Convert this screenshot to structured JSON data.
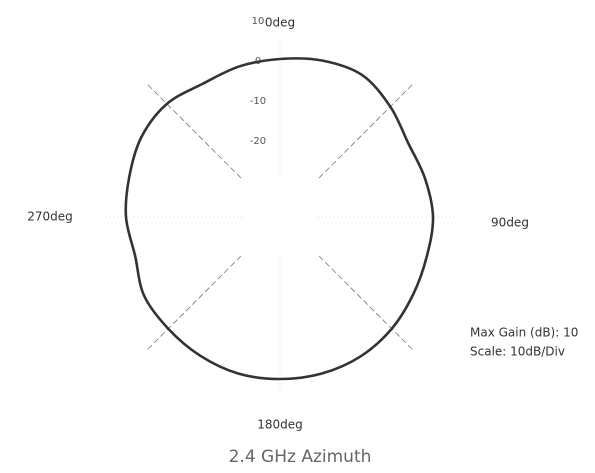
{
  "chart_data": {
    "type": "polar",
    "title": "2.4 GHz Azimuth",
    "angle_ticks": [
      0,
      90,
      180,
      270
    ],
    "angle_labels": [
      "0deg",
      "90deg",
      "180deg",
      "270deg"
    ],
    "rlim": [
      -40,
      10
    ],
    "rticks": [
      10,
      0,
      -10,
      -20
    ],
    "angles": [
      0,
      15,
      30,
      45,
      60,
      75,
      90,
      105,
      120,
      135,
      150,
      165,
      180,
      195,
      210,
      225,
      240,
      255,
      270,
      285,
      300,
      315,
      330,
      345
    ],
    "values": [
      -0.5,
      0.5,
      1,
      -1,
      -3,
      -2.5,
      -1.75,
      -2,
      -1.5,
      -0.5,
      0.25,
      0.5,
      0.5,
      0.5,
      0,
      -0.5,
      -0.75,
      -2.5,
      -1.5,
      -1,
      0,
      0,
      -1.5,
      -1
    ],
    "color": "#333333",
    "annotations": [
      "Max Gain (dB): 10",
      "Scale: 10dB/Div"
    ]
  }
}
